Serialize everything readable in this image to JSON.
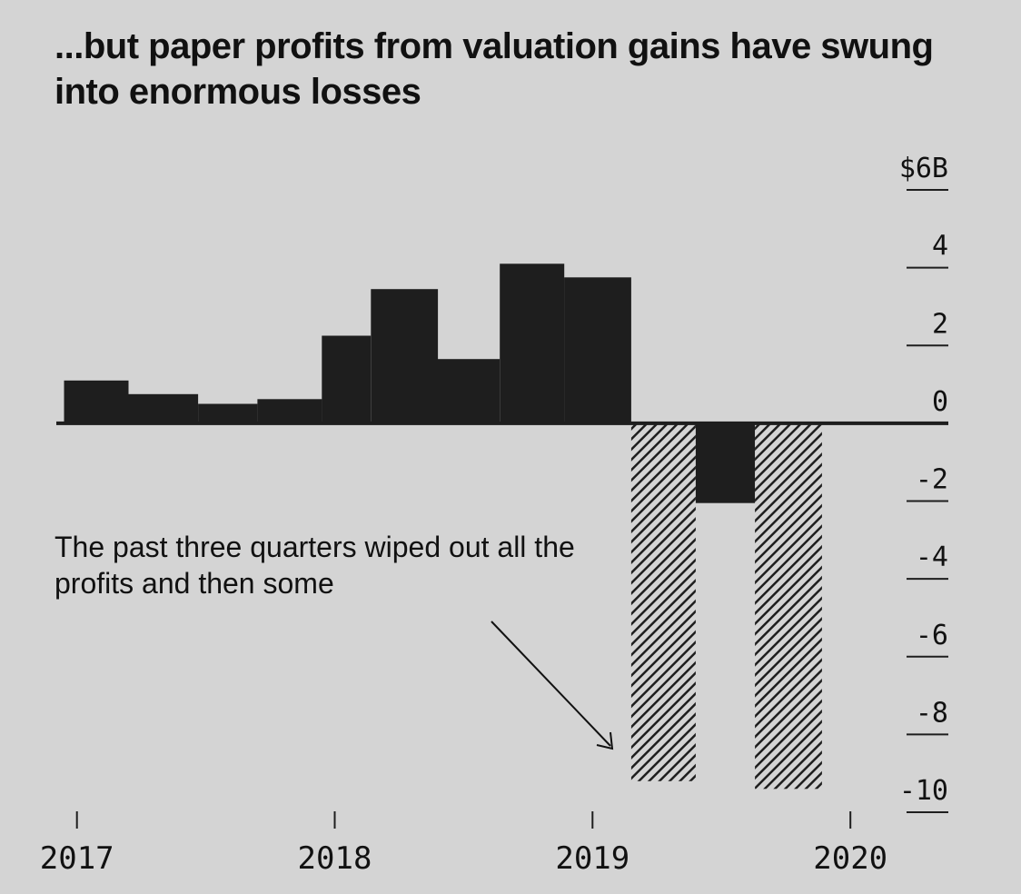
{
  "title": "...but paper profits from valuation gains have swung into enormous losses",
  "annotation": "The past three quarters wiped out all the profits and then some",
  "colors": {
    "background": "#d4d4d4",
    "bar": "#1e1e1e",
    "text": "#111111"
  },
  "chart_data": {
    "type": "bar",
    "title": "...but paper profits from valuation gains have swung into enormous losses",
    "xlabel": "",
    "ylabel": "",
    "unit": "$B",
    "ylim": [
      -10,
      6
    ],
    "yticks": [
      6,
      4,
      2,
      0,
      -2,
      -4,
      -6,
      -8,
      -10
    ],
    "ytick_labels": [
      "$6B",
      "4",
      "2",
      "0",
      "-2",
      "-4",
      "-6",
      "-8",
      "-10"
    ],
    "xticks": [
      2017,
      2018,
      2019,
      2020
    ],
    "xtick_labels": [
      "2017",
      "2018",
      "2019",
      "2020"
    ],
    "xlim": [
      2016.92,
      2020.38
    ],
    "grid": false,
    "legend": null,
    "bars": [
      {
        "start": 2016.95,
        "end": 2017.2,
        "value": 1.1,
        "hatched": false
      },
      {
        "start": 2017.2,
        "end": 2017.47,
        "value": 0.75,
        "hatched": false
      },
      {
        "start": 2017.47,
        "end": 2017.7,
        "value": 0.5,
        "hatched": false
      },
      {
        "start": 2017.7,
        "end": 2017.95,
        "value": 0.62,
        "hatched": false
      },
      {
        "start": 2017.95,
        "end": 2018.14,
        "value": 2.25,
        "hatched": false
      },
      {
        "start": 2018.14,
        "end": 2018.4,
        "value": 3.45,
        "hatched": false
      },
      {
        "start": 2018.4,
        "end": 2018.64,
        "value": 1.65,
        "hatched": false
      },
      {
        "start": 2018.64,
        "end": 2018.89,
        "value": 4.1,
        "hatched": false
      },
      {
        "start": 2018.89,
        "end": 2019.15,
        "value": 3.75,
        "hatched": false
      },
      {
        "start": 2019.15,
        "end": 2019.4,
        "value": -9.2,
        "hatched": true
      },
      {
        "start": 2019.4,
        "end": 2019.63,
        "value": -2.05,
        "hatched": false
      },
      {
        "start": 2019.63,
        "end": 2019.89,
        "value": -9.4,
        "hatched": true
      }
    ]
  }
}
